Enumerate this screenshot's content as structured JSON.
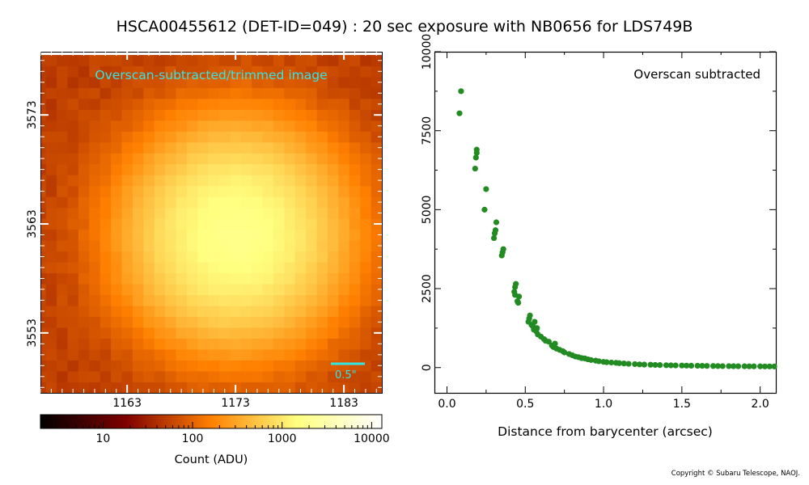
{
  "title": "HSCA00455612 (DET-ID=049) :  20 sec exposure with NB0656 for LDS749B",
  "copyright": "Copyright © Subaru Telescope, NAOJ.",
  "colors": {
    "accent_cyan": "#33e6e6",
    "points": "#228b22"
  },
  "chart_data": [
    {
      "type": "heatmap",
      "annotation": "Overscan-subtracted/trimmed image",
      "scalebar_label": "0.5\"",
      "x_ticks": [
        1163,
        1173,
        1183
      ],
      "y_ticks": [
        3573,
        3563,
        3553
      ],
      "xlim": [
        1155,
        1186.5
      ],
      "ylim": [
        3547.5,
        3578.8
      ],
      "center": [
        1173,
        3562
      ],
      "peak_adu": 1500,
      "background_adu": 40,
      "colormap": "afmhot",
      "colorbar": {
        "label": "Count (ADU)",
        "scale": "log",
        "range": [
          2,
          13000
        ],
        "ticks": [
          "10",
          "100",
          "1000",
          "10000"
        ],
        "tick_values": [
          10,
          100,
          1000,
          10000
        ]
      }
    },
    {
      "type": "scatter",
      "annotation": "Overscan subtracted",
      "xlabel": "Distance from barycenter (arcsec)",
      "ylabel": "",
      "xlim": [
        -0.08,
        2.1
      ],
      "ylim": [
        -800,
        10000
      ],
      "x_ticks": [
        "0.0",
        "0.5",
        "1.0",
        "1.5",
        "2.0"
      ],
      "x_tick_values": [
        0,
        0.5,
        1.0,
        1.5,
        2.0
      ],
      "y_ticks": [
        "0",
        "2500",
        "5000",
        "7500",
        "10000"
      ],
      "y_tick_values": [
        0,
        2500,
        5000,
        7500,
        10000
      ],
      "marker_color": "#228b22",
      "points": [
        [
          0.08,
          8050
        ],
        [
          0.09,
          8750
        ],
        [
          0.18,
          6300
        ],
        [
          0.185,
          6650
        ],
        [
          0.19,
          6800
        ],
        [
          0.19,
          6900
        ],
        [
          0.24,
          5000
        ],
        [
          0.25,
          5650
        ],
        [
          0.3,
          4100
        ],
        [
          0.305,
          4250
        ],
        [
          0.31,
          4350
        ],
        [
          0.315,
          4600
        ],
        [
          0.35,
          3550
        ],
        [
          0.355,
          3650
        ],
        [
          0.36,
          3750
        ],
        [
          0.43,
          2400
        ],
        [
          0.435,
          2550
        ],
        [
          0.44,
          2650
        ],
        [
          0.435,
          2300
        ],
        [
          0.45,
          2100
        ],
        [
          0.455,
          2050
        ],
        [
          0.46,
          2250
        ],
        [
          0.52,
          1450
        ],
        [
          0.525,
          1550
        ],
        [
          0.53,
          1650
        ],
        [
          0.54,
          1350
        ],
        [
          0.55,
          1300
        ],
        [
          0.555,
          1200
        ],
        [
          0.56,
          1450
        ],
        [
          0.57,
          1150
        ],
        [
          0.575,
          1250
        ],
        [
          0.58,
          1050
        ],
        [
          0.6,
          980
        ],
        [
          0.62,
          900
        ],
        [
          0.63,
          850
        ],
        [
          0.65,
          820
        ],
        [
          0.67,
          700
        ],
        [
          0.68,
          650
        ],
        [
          0.69,
          760
        ],
        [
          0.7,
          600
        ],
        [
          0.72,
          560
        ],
        [
          0.74,
          520
        ],
        [
          0.75,
          480
        ],
        [
          0.78,
          430
        ],
        [
          0.8,
          390
        ],
        [
          0.82,
          350
        ],
        [
          0.84,
          330
        ],
        [
          0.86,
          300
        ],
        [
          0.88,
          290
        ],
        [
          0.9,
          260
        ],
        [
          0.92,
          240
        ],
        [
          0.95,
          220
        ],
        [
          0.97,
          200
        ],
        [
          1.0,
          180
        ],
        [
          1.02,
          170
        ],
        [
          1.05,
          160
        ],
        [
          1.08,
          150
        ],
        [
          1.1,
          140
        ],
        [
          1.13,
          130
        ],
        [
          1.16,
          120
        ],
        [
          1.2,
          110
        ],
        [
          1.23,
          100
        ],
        [
          1.26,
          95
        ],
        [
          1.3,
          90
        ],
        [
          1.33,
          85
        ],
        [
          1.36,
          80
        ],
        [
          1.4,
          75
        ],
        [
          1.43,
          70
        ],
        [
          1.46,
          68
        ],
        [
          1.5,
          65
        ],
        [
          1.53,
          62
        ],
        [
          1.56,
          60
        ],
        [
          1.6,
          58
        ],
        [
          1.63,
          55
        ],
        [
          1.66,
          52
        ],
        [
          1.7,
          50
        ],
        [
          1.73,
          48
        ],
        [
          1.76,
          46
        ],
        [
          1.8,
          45
        ],
        [
          1.83,
          44
        ],
        [
          1.86,
          42
        ],
        [
          1.9,
          41
        ],
        [
          1.93,
          40
        ],
        [
          1.96,
          39
        ],
        [
          2.0,
          38
        ],
        [
          2.03,
          37
        ],
        [
          2.06,
          36
        ],
        [
          2.09,
          35
        ]
      ]
    }
  ]
}
